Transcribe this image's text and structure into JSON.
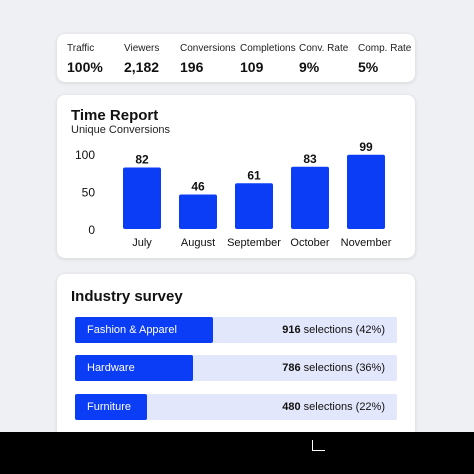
{
  "stats": [
    {
      "label": "Traffic",
      "value": "100%"
    },
    {
      "label": "Viewers",
      "value": "2,182"
    },
    {
      "label": "Conversions",
      "value": "196"
    },
    {
      "label": "Completions",
      "value": "109"
    },
    {
      "label": "Conv. Rate",
      "value": "9%"
    },
    {
      "label": "Comp. Rate",
      "value": "5%"
    }
  ],
  "report": {
    "title": "Time Report",
    "subtitle": "Unique Conversions"
  },
  "chart_data": {
    "type": "bar",
    "title": "Time Report",
    "subtitle": "Unique Conversions",
    "categories": [
      "July",
      "August",
      "September",
      "October",
      "November"
    ],
    "values": [
      82,
      46,
      61,
      83,
      99
    ],
    "yticks": [
      0,
      50,
      100
    ],
    "ylim": [
      0,
      100
    ],
    "color": "#0a3df5",
    "grid": false
  },
  "survey": {
    "title": "Industry survey",
    "items": [
      {
        "name": "Fashion & Apparel",
        "count": "916",
        "suffix": " selections (42%)",
        "share": 0.42
      },
      {
        "name": "Hardware",
        "count": "786",
        "suffix": " selections (36%)",
        "share": 0.36
      },
      {
        "name": "Furniture",
        "count": "480",
        "suffix": " selections (22%)",
        "share": 0.22
      }
    ],
    "bar_color": "#0a3df5",
    "track_color": "#e3e7fb"
  }
}
